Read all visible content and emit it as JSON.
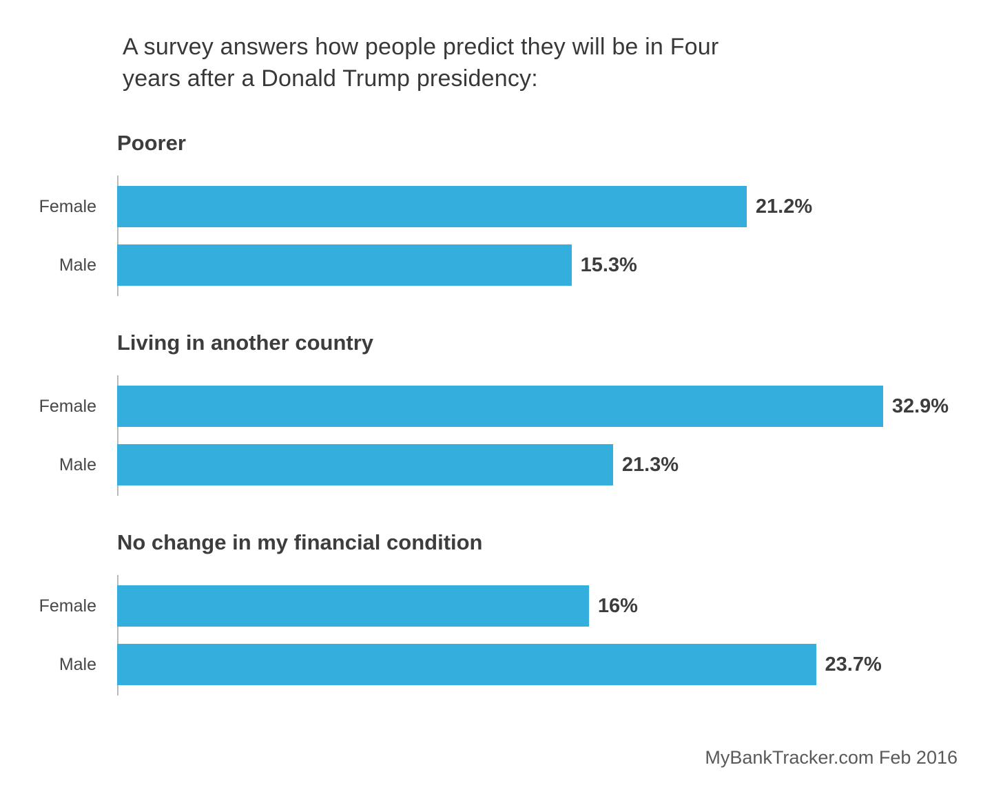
{
  "page": {
    "title_line1": "A survey answers how people predict they will be in Four",
    "title_line2": "years after a Donald Trump presidency:",
    "source": "MyBankTracker.com Feb 2016"
  },
  "colors": {
    "bar": "#34aedc",
    "heading_text": "#3d3d3d",
    "axis": "#b9b9b9",
    "source_text": "#58595b"
  },
  "chart_data": [
    {
      "type": "bar",
      "orientation": "horizontal",
      "title": "Poorer",
      "categories": [
        "Female",
        "Male"
      ],
      "values": [
        21.2,
        15.3
      ],
      "value_labels": [
        "21.2%",
        "15.3%"
      ],
      "xlim": [
        0,
        28.3
      ],
      "xlabel": "",
      "ylabel": "",
      "grid": false,
      "legend": false
    },
    {
      "type": "bar",
      "orientation": "horizontal",
      "title": "Living in another country",
      "categories": [
        "Female",
        "Male"
      ],
      "values": [
        32.9,
        21.3
      ],
      "value_labels": [
        "32.9%",
        "21.3%"
      ],
      "xlim": [
        0,
        36.1
      ],
      "xlabel": "",
      "ylabel": "",
      "grid": false,
      "legend": false
    },
    {
      "type": "bar",
      "orientation": "horizontal",
      "title": "No change in my financial condition",
      "categories": [
        "Female",
        "Male"
      ],
      "values": [
        16,
        23.7
      ],
      "value_labels": [
        "16%",
        "23.7%"
      ],
      "xlim": [
        0,
        28.5
      ],
      "xlabel": "",
      "ylabel": "",
      "grid": false,
      "legend": false
    }
  ]
}
